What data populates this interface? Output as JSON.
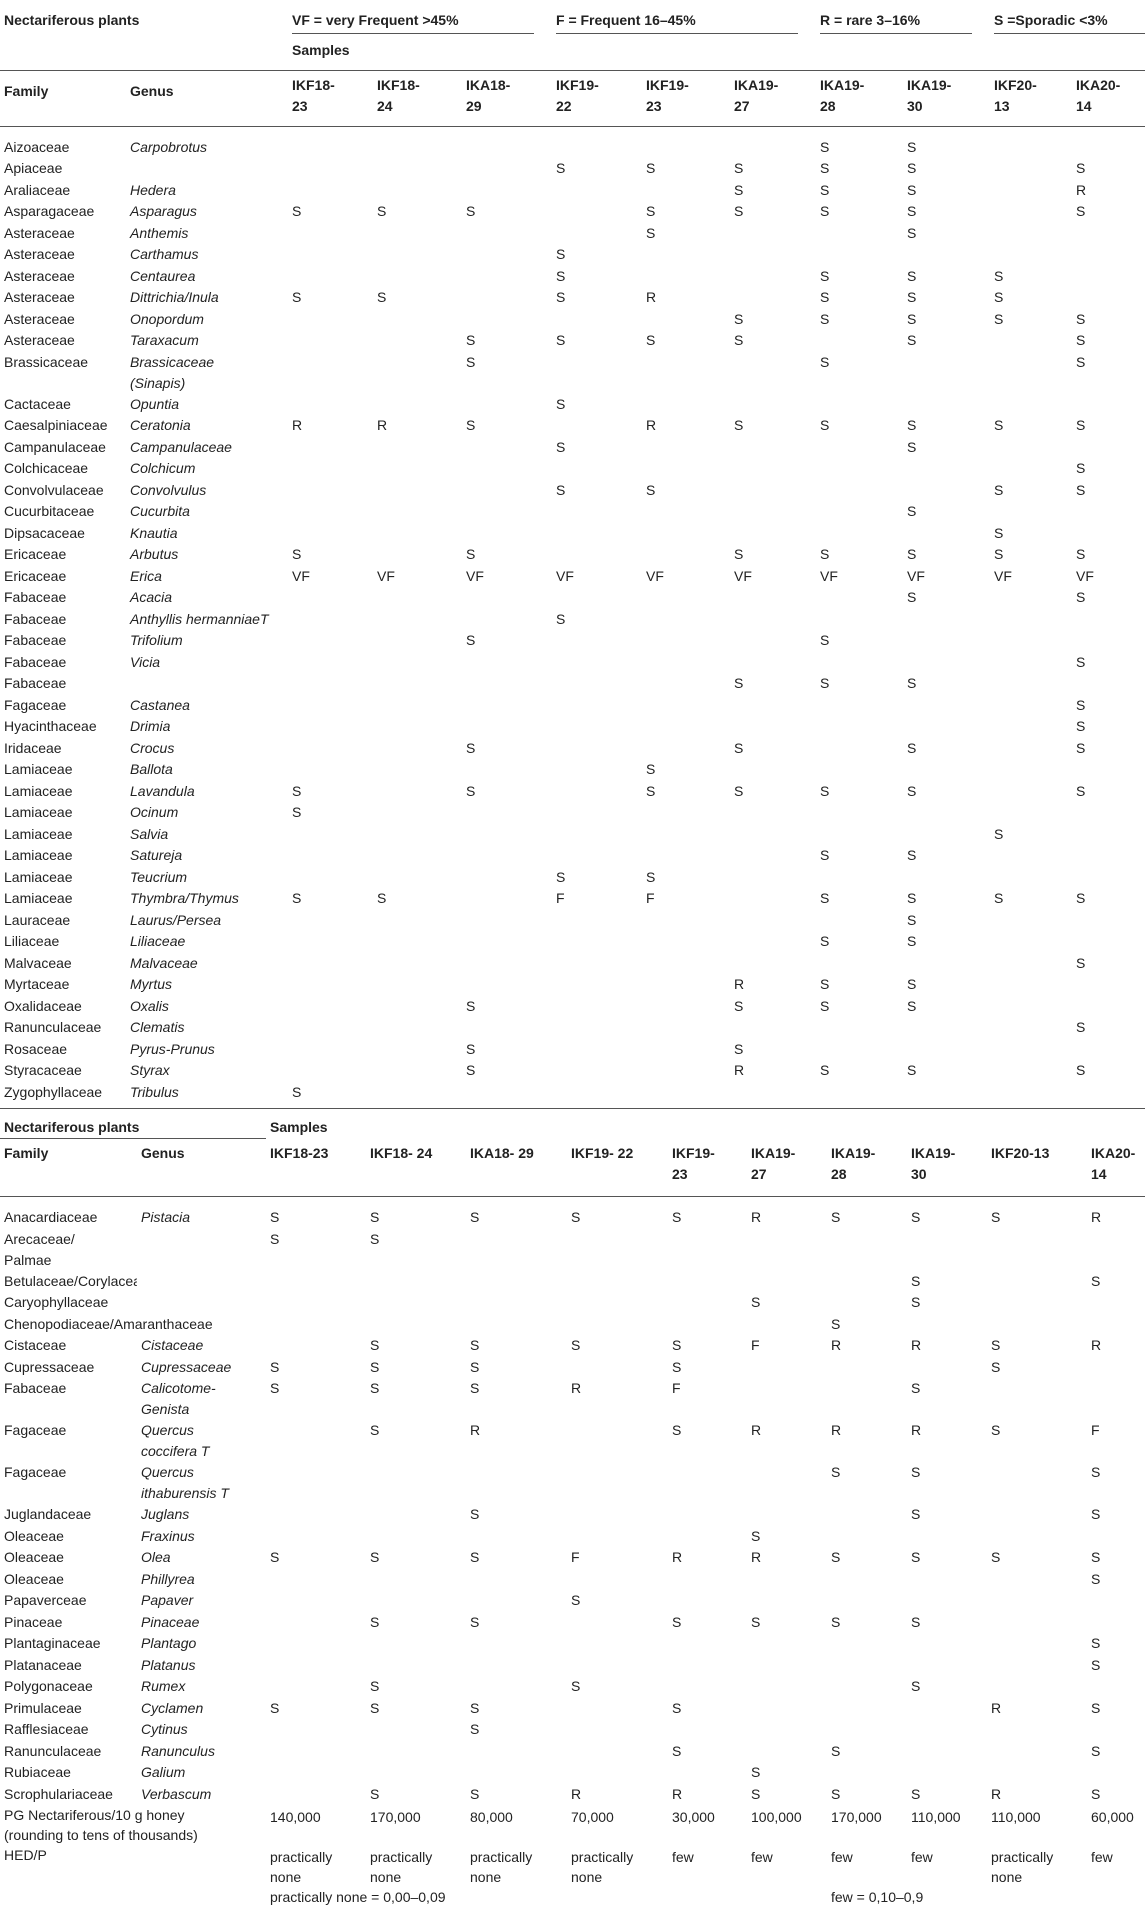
{
  "table1": {
    "corner_title": "Nectariferous plants",
    "legend": [
      "VF = very Frequent >45%",
      "F = Frequent 16–45%",
      "R = rare 3–16%",
      "S =Sporadic <3%"
    ],
    "samples_label": "Samples",
    "family_header": "Family",
    "genus_header": "Genus",
    "sample_headers": [
      "IKF18-\n23",
      "IKF18-\n24",
      "IKA18-\n29",
      "IKF19-\n22",
      "IKF19-\n23",
      "IKA19-\n27",
      "IKA19-\n28",
      "IKA19-\n30",
      "IKF20-\n13",
      "IKA20-\n14"
    ],
    "rows": [
      {
        "family": "Aizoaceae",
        "genus": "Carpobrotus",
        "v": [
          "",
          "",
          "",
          "",
          "",
          "",
          "S",
          "S",
          "",
          ""
        ]
      },
      {
        "family": "Apiaceae",
        "genus": "",
        "v": [
          "",
          "",
          "",
          "S",
          "S",
          "S",
          "S",
          "S",
          "",
          "S"
        ]
      },
      {
        "family": "Araliaceae",
        "genus": "Hedera",
        "v": [
          "",
          "",
          "",
          "",
          "",
          "S",
          "S",
          "S",
          "",
          "R"
        ]
      },
      {
        "family": "Asparagaceae",
        "genus": "Asparagus",
        "v": [
          "S",
          "S",
          "S",
          "",
          "S",
          "S",
          "S",
          "S",
          "",
          "S"
        ]
      },
      {
        "family": "Asteraceae",
        "genus": "Anthemis",
        "v": [
          "",
          "",
          "",
          "",
          "S",
          "",
          "",
          "S",
          "",
          ""
        ]
      },
      {
        "family": "Asteraceae",
        "genus": "Carthamus",
        "v": [
          "",
          "",
          "",
          "S",
          "",
          "",
          "",
          "",
          "",
          ""
        ]
      },
      {
        "family": "Asteraceae",
        "genus": "Centaurea",
        "v": [
          "",
          "",
          "",
          "S",
          "",
          "",
          "S",
          "S",
          "S",
          ""
        ]
      },
      {
        "family": "Asteraceae",
        "genus": "Dittrichia/Inula",
        "v": [
          "S",
          "S",
          "",
          "S",
          "R",
          "",
          "S",
          "S",
          "S",
          ""
        ]
      },
      {
        "family": "Asteraceae",
        "genus": "Onopordum",
        "v": [
          "",
          "",
          "",
          "",
          "",
          "S",
          "S",
          "S",
          "S",
          "S"
        ]
      },
      {
        "family": "Asteraceae",
        "genus": "Taraxacum",
        "v": [
          "",
          "",
          "S",
          "S",
          "S",
          "S",
          "",
          "S",
          "",
          "S"
        ]
      },
      {
        "family": "Brassicaceae",
        "genus": "Brassicaceae\n(Sinapis)",
        "v": [
          "",
          "",
          "S",
          "",
          "",
          "",
          "S",
          "",
          "",
          "S"
        ]
      },
      {
        "family": "Cactaceae",
        "genus": "Opuntia",
        "v": [
          "",
          "",
          "",
          "S",
          "",
          "",
          "",
          "",
          "",
          ""
        ]
      },
      {
        "family": "Caesalpiniaceae",
        "genus": "Ceratonia",
        "v": [
          "R",
          "R",
          "S",
          "",
          "R",
          "S",
          "S",
          "S",
          "S",
          "S"
        ]
      },
      {
        "family": "Campanulaceae",
        "genus": "Campanulaceae",
        "v": [
          "",
          "",
          "",
          "S",
          "",
          "",
          "",
          "S",
          "",
          ""
        ]
      },
      {
        "family": "Colchicaceae",
        "genus": "Colchicum",
        "v": [
          "",
          "",
          "",
          "",
          "",
          "",
          "",
          "",
          "",
          "S"
        ]
      },
      {
        "family": "Convolvulaceae",
        "genus": "Convolvulus",
        "v": [
          "",
          "",
          "",
          "S",
          "S",
          "",
          "",
          "",
          "S",
          "S"
        ]
      },
      {
        "family": "Cucurbitaceae",
        "genus": "Cucurbita",
        "v": [
          "",
          "",
          "",
          "",
          "",
          "",
          "",
          "S",
          "",
          ""
        ]
      },
      {
        "family": "Dipsacaceae",
        "genus": "Knautia",
        "v": [
          "",
          "",
          "",
          "",
          "",
          "",
          "",
          "",
          "S",
          ""
        ]
      },
      {
        "family": "Ericaceae",
        "genus": "Arbutus",
        "v": [
          "S",
          "",
          "S",
          "",
          "",
          "S",
          "S",
          "S",
          "S",
          "S"
        ]
      },
      {
        "family": "Ericaceae",
        "genus": "Erica",
        "v": [
          "VF",
          "VF",
          "VF",
          "VF",
          "VF",
          "VF",
          "VF",
          "VF",
          "VF",
          "VF"
        ]
      },
      {
        "family": "Fabaceae",
        "genus": "Acacia",
        "v": [
          "",
          "",
          "",
          "",
          "",
          "",
          "",
          "S",
          "",
          "S"
        ]
      },
      {
        "family": "Fabaceae",
        "genus": "Anthyllis hermanniaeT",
        "v": [
          "",
          "",
          "",
          "S",
          "",
          "",
          "",
          "",
          "",
          ""
        ]
      },
      {
        "family": "Fabaceae",
        "genus": "Trifolium",
        "v": [
          "",
          "",
          "S",
          "",
          "",
          "",
          "S",
          "",
          "",
          ""
        ]
      },
      {
        "family": "Fabaceae",
        "genus": "Vicia",
        "v": [
          "",
          "",
          "",
          "",
          "",
          "",
          "",
          "",
          "",
          "S"
        ]
      },
      {
        "family": "Fabaceae",
        "genus": "",
        "v": [
          "",
          "",
          "",
          "",
          "",
          "S",
          "S",
          "S",
          "",
          ""
        ]
      },
      {
        "family": "Fagaceae",
        "genus": "Castanea",
        "v": [
          "",
          "",
          "",
          "",
          "",
          "",
          "",
          "",
          "",
          "S"
        ]
      },
      {
        "family": "Hyacinthaceae",
        "genus": "Drimia",
        "v": [
          "",
          "",
          "",
          "",
          "",
          "",
          "",
          "",
          "",
          "S"
        ]
      },
      {
        "family": "Iridaceae",
        "genus": "Crocus",
        "v": [
          "",
          "",
          "S",
          "",
          "",
          "S",
          "",
          "S",
          "",
          "S"
        ]
      },
      {
        "family": "Lamiaceae",
        "genus": "Ballota",
        "v": [
          "",
          "",
          "",
          "",
          "S",
          "",
          "",
          "",
          "",
          ""
        ]
      },
      {
        "family": "Lamiaceae",
        "genus": "Lavandula",
        "v": [
          "S",
          "",
          "S",
          "",
          "S",
          "S",
          "S",
          "S",
          "",
          "S"
        ]
      },
      {
        "family": "Lamiaceae",
        "genus": "Ocinum",
        "v": [
          "S",
          "",
          "",
          "",
          "",
          "",
          "",
          "",
          "",
          ""
        ]
      },
      {
        "family": "Lamiaceae",
        "genus": "Salvia",
        "v": [
          "",
          "",
          "",
          "",
          "",
          "",
          "",
          "",
          "S",
          ""
        ]
      },
      {
        "family": "Lamiaceae",
        "genus": "Satureja",
        "v": [
          "",
          "",
          "",
          "",
          "",
          "",
          "S",
          "S",
          "",
          ""
        ]
      },
      {
        "family": "Lamiaceae",
        "genus": "Teucrium",
        "v": [
          "",
          "",
          "",
          "S",
          "S",
          "",
          "",
          "",
          "",
          ""
        ]
      },
      {
        "family": "Lamiaceae",
        "genus": "Thymbra/Thymus",
        "v": [
          "S",
          "S",
          "",
          "F",
          "F",
          "",
          "S",
          "S",
          "S",
          "S"
        ]
      },
      {
        "family": "Lauraceae",
        "genus": "Laurus/Persea",
        "v": [
          "",
          "",
          "",
          "",
          "",
          "",
          "",
          "S",
          "",
          ""
        ]
      },
      {
        "family": "Liliaceae",
        "genus": "Liliaceae",
        "v": [
          "",
          "",
          "",
          "",
          "",
          "",
          "S",
          "S",
          "",
          ""
        ]
      },
      {
        "family": "Malvaceae",
        "genus": "Malvaceae",
        "v": [
          "",
          "",
          "",
          "",
          "",
          "",
          "",
          "",
          "",
          "S"
        ]
      },
      {
        "family": "Myrtaceae",
        "genus": "Myrtus",
        "v": [
          "",
          "",
          "",
          "",
          "",
          "R",
          "S",
          "S",
          "",
          ""
        ]
      },
      {
        "family": "Oxalidaceae",
        "genus": "Oxalis",
        "v": [
          "",
          "",
          "S",
          "",
          "",
          "S",
          "S",
          "S",
          "",
          ""
        ]
      },
      {
        "family": "Ranunculaceae",
        "genus": "Clematis",
        "v": [
          "",
          "",
          "",
          "",
          "",
          "",
          "",
          "",
          "",
          "S"
        ]
      },
      {
        "family": "Rosaceae",
        "genus": "Pyrus-Prunus",
        "v": [
          "",
          "",
          "S",
          "",
          "",
          "S",
          "",
          "",
          "",
          ""
        ]
      },
      {
        "family": "Styracaceae",
        "genus": "Styrax",
        "v": [
          "",
          "",
          "S",
          "",
          "",
          "R",
          "S",
          "S",
          "",
          "S"
        ]
      },
      {
        "family": "Zygophyllaceae",
        "genus": "Tribulus",
        "v": [
          "S",
          "",
          "",
          "",
          "",
          "",
          "",
          "",
          "",
          ""
        ]
      }
    ]
  },
  "table2": {
    "corner_title": "Nectariferous plants",
    "samples_label": "Samples",
    "family_header": "Family",
    "genus_header": "Genus",
    "sample_headers": [
      "IKF18-23",
      "IKF18- 24",
      "IKA18- 29",
      "IKF19- 22",
      "IKF19-\n23",
      "IKA19-\n27",
      "IKA19-\n28",
      "IKA19-\n30",
      "IKF20-13",
      "IKA20-\n14"
    ],
    "rows": [
      {
        "family": "Anacardiaceae",
        "genus": "Pistacia",
        "v": [
          "S",
          "S",
          "S",
          "S",
          "S",
          "R",
          "S",
          "S",
          "S",
          "R"
        ]
      },
      {
        "family": "Arecaceae/\nPalmae",
        "genus": "",
        "v": [
          "S",
          "S",
          "",
          "",
          "",
          "",
          "",
          "",
          "",
          ""
        ]
      },
      {
        "family": "Betulaceae/Corylaceae",
        "genus": "",
        "v": [
          "",
          "",
          "",
          "",
          "",
          "",
          "",
          "S",
          "",
          "S"
        ]
      },
      {
        "family": "Caryophyllaceae",
        "genus": "",
        "v": [
          "",
          "",
          "",
          "",
          "",
          "S",
          "",
          "S",
          "",
          ""
        ]
      },
      {
        "family": "Chenopodiaceae/Amaranthaceae",
        "genus": "",
        "v": [
          "",
          "",
          "",
          "",
          "",
          "",
          "S",
          "",
          "",
          ""
        ]
      },
      {
        "family": "Cistaceae",
        "genus": "Cistaceae",
        "v": [
          "",
          "S",
          "S",
          "S",
          "S",
          "F",
          "R",
          "R",
          "S",
          "R"
        ]
      },
      {
        "family": "Cupressaceae",
        "genus": "Cupressaceae",
        "v": [
          "S",
          "S",
          "S",
          "",
          "S",
          "",
          "",
          "",
          "S",
          ""
        ]
      },
      {
        "family": "Fabaceae",
        "genus": "Calicotome-\nGenista",
        "v": [
          "S",
          "S",
          "S",
          "R",
          "F",
          "",
          "",
          "S",
          "",
          ""
        ]
      },
      {
        "family": "Fagaceae",
        "genus": "Quercus\ncoccifera T",
        "v": [
          "",
          "S",
          "R",
          "",
          "S",
          "R",
          "R",
          "R",
          "S",
          "F"
        ]
      },
      {
        "family": "Fagaceae",
        "genus": "Quercus\nithaburensis T",
        "v": [
          "",
          "",
          "",
          "",
          "",
          "",
          "S",
          "S",
          "",
          "S"
        ]
      },
      {
        "family": "Juglandaceae",
        "genus": "Juglans",
        "v": [
          "",
          "",
          "S",
          "",
          "",
          "",
          "",
          "S",
          "",
          "S"
        ]
      },
      {
        "family": "Oleaceae",
        "genus": "Fraxinus",
        "v": [
          "",
          "",
          "",
          "",
          "",
          "S",
          "",
          "",
          "",
          ""
        ]
      },
      {
        "family": "Oleaceae",
        "genus": "Olea",
        "v": [
          "S",
          "S",
          "S",
          "F",
          "R",
          "R",
          "S",
          "S",
          "S",
          "S"
        ]
      },
      {
        "family": "Oleaceae",
        "genus": "Phillyrea",
        "v": [
          "",
          "",
          "",
          "",
          "",
          "",
          "",
          "",
          "",
          "S"
        ]
      },
      {
        "family": "Papaverceae",
        "genus": "Papaver",
        "v": [
          "",
          "",
          "",
          "S",
          "",
          "",
          "",
          "",
          "",
          ""
        ]
      },
      {
        "family": "Pinaceae",
        "genus": "Pinaceae",
        "v": [
          "",
          "S",
          "S",
          "",
          "S",
          "S",
          "S",
          "S",
          "",
          ""
        ]
      },
      {
        "family": "Plantaginaceae",
        "genus": "Plantago",
        "v": [
          "",
          "",
          "",
          "",
          "",
          "",
          "",
          "",
          "",
          "S"
        ]
      },
      {
        "family": "Platanaceae",
        "genus": "Platanus",
        "v": [
          "",
          "",
          "",
          "",
          "",
          "",
          "",
          "",
          "",
          "S"
        ]
      },
      {
        "family": "Polygonaceae",
        "genus": "Rumex",
        "v": [
          "",
          "S",
          "",
          "S",
          "",
          "",
          "",
          "S",
          "",
          ""
        ]
      },
      {
        "family": "Primulaceae",
        "genus": "Cyclamen",
        "v": [
          "S",
          "S",
          "S",
          "",
          "S",
          "",
          "",
          "",
          "R",
          "S"
        ]
      },
      {
        "family": "Rafflesiaceae",
        "genus": "Cytinus",
        "v": [
          "",
          "",
          "S",
          "",
          "",
          "",
          "",
          "",
          "",
          ""
        ]
      },
      {
        "family": "Ranunculaceae",
        "genus": "Ranunculus",
        "v": [
          "",
          "",
          "",
          "",
          "S",
          "",
          "S",
          "",
          "",
          "S"
        ]
      },
      {
        "family": "Rubiaceae",
        "genus": "Galium",
        "v": [
          "",
          "",
          "",
          "",
          "",
          "S",
          "",
          "",
          "",
          ""
        ]
      },
      {
        "family": "Scrophulariaceae",
        "genus": "Verbascum",
        "v": [
          "",
          "S",
          "S",
          "R",
          "R",
          "S",
          "S",
          "S",
          "R",
          "S"
        ]
      }
    ],
    "pg_label": "PG Nectariferous/10 g honey\n(rounding to tens of thousands)",
    "pg_values": [
      "140,000",
      "170,000",
      "80,000",
      "70,000",
      "30,000",
      "100,000",
      "170,000",
      "110,000",
      "110,000",
      "60,000"
    ],
    "hed_label": "HED/P",
    "hed_values": [
      "practically\nnone",
      "practically\nnone",
      "practically\nnone",
      "practically\nnone",
      "few",
      "few",
      "few",
      "few",
      "practically\nnone",
      "few"
    ],
    "footnote_left": "practically none = 0,00–0,09",
    "footnote_right": "few = 0,10–0,9"
  }
}
